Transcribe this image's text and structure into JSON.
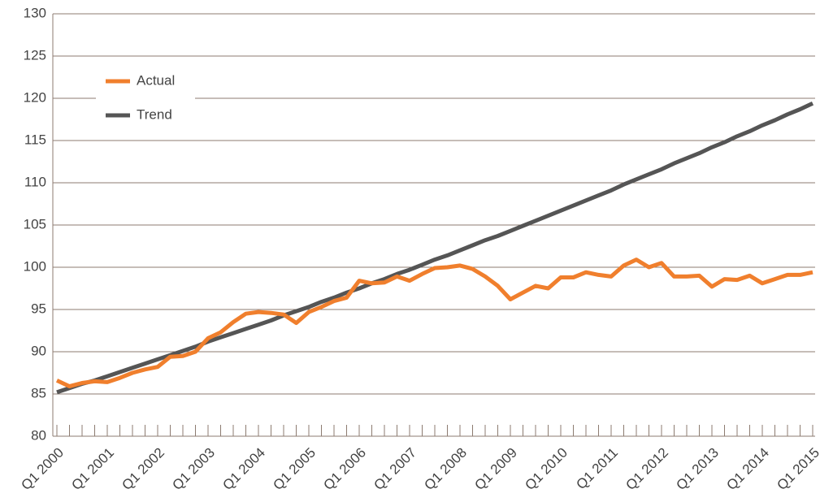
{
  "chart_data": {
    "type": "line",
    "categories": [
      "Q1 2000",
      null,
      null,
      null,
      "Q1 2001",
      null,
      null,
      null,
      "Q1 2002",
      null,
      null,
      null,
      "Q1 2003",
      null,
      null,
      null,
      "Q1 2004",
      null,
      null,
      null,
      "Q1 2005",
      null,
      null,
      null,
      "Q1 2006",
      null,
      null,
      null,
      "Q1 2007",
      null,
      null,
      null,
      "Q1 2008",
      null,
      null,
      null,
      "Q1 2009",
      null,
      null,
      null,
      "Q1 2010",
      null,
      null,
      null,
      "Q1 2011",
      null,
      null,
      null,
      "Q1 2012",
      null,
      null,
      null,
      "Q1 2013",
      null,
      null,
      null,
      "Q1 2014",
      null,
      null,
      null,
      "Q1 2015"
    ],
    "series": [
      {
        "name": "Actual",
        "color": "#f07f2d",
        "values": [
          86.6,
          85.9,
          86.3,
          86.5,
          86.4,
          86.9,
          87.5,
          87.9,
          88.2,
          89.4,
          89.5,
          90.0,
          91.6,
          92.3,
          93.5,
          94.5,
          94.7,
          94.6,
          94.4,
          93.4,
          94.7,
          95.3,
          96.0,
          96.4,
          98.4,
          98.1,
          98.2,
          98.9,
          98.4,
          99.2,
          99.9,
          100.0,
          100.2,
          99.8,
          98.9,
          97.8,
          96.2,
          97.0,
          97.8,
          97.5,
          98.8,
          98.8,
          99.4,
          99.1,
          98.9,
          100.2,
          100.9,
          100.0,
          100.5,
          98.9,
          98.9,
          99.0,
          97.7,
          98.6,
          98.5,
          99.0,
          98.1,
          98.6,
          99.1,
          99.1,
          99.4
        ]
      },
      {
        "name": "Trend",
        "color": "#555555",
        "values": [
          85.2,
          85.7,
          86.2,
          86.6,
          87.1,
          87.6,
          88.1,
          88.6,
          89.1,
          89.6,
          90.1,
          90.6,
          91.2,
          91.7,
          92.2,
          92.7,
          93.2,
          93.7,
          94.3,
          94.8,
          95.3,
          95.9,
          96.4,
          97.0,
          97.5,
          98.1,
          98.6,
          99.2,
          99.7,
          100.3,
          100.9,
          101.4,
          102.0,
          102.6,
          103.2,
          103.7,
          104.3,
          104.9,
          105.5,
          106.1,
          106.7,
          107.3,
          107.9,
          108.5,
          109.1,
          109.8,
          110.4,
          111.0,
          111.6,
          112.3,
          112.9,
          113.5,
          114.2,
          114.8,
          115.5,
          116.1,
          116.8,
          117.4,
          118.1,
          118.7,
          119.4
        ]
      }
    ],
    "ylim": [
      80,
      130
    ],
    "yticks": [
      80,
      85,
      90,
      95,
      100,
      105,
      110,
      115,
      120,
      125,
      130
    ],
    "grid": true,
    "legend": "upper-left"
  }
}
